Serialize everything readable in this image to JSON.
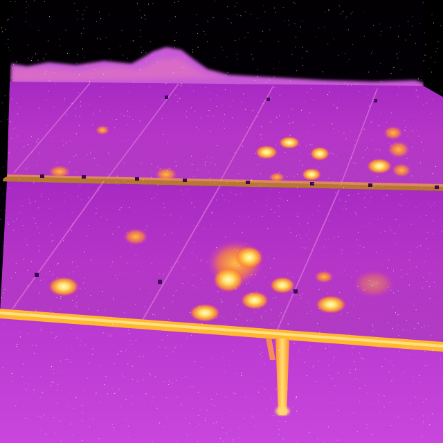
{
  "image": {
    "kind": "thermal-photo",
    "subject": "solar-panel-array",
    "palette": {
      "sky": "#050006",
      "panel_base": "#b230c8",
      "panel_dark": "#8e1fb0",
      "ground": "#c040d8",
      "rail": "#ffb020",
      "hot_core": "#fff6b8",
      "hot_mid": "#ffd44a",
      "hot_warm": "#ff9a2a",
      "noise": "#ffffff"
    }
  }
}
